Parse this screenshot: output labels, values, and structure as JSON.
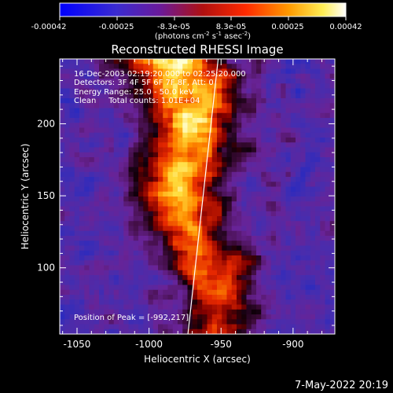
{
  "colorbar": {
    "ticks": [
      "-0.00042",
      "-0.00025",
      "-8.3e-05",
      "8.3e-05",
      "0.00025",
      "0.00042"
    ],
    "unit_label": "(photons cm",
    "unit_exp1": "-2",
    "unit_mid": " s",
    "unit_exp2": "-1",
    "unit_mid2": " asec",
    "unit_exp3": "-2",
    "unit_end": ")"
  },
  "info": {
    "time": "16-Dec-2003 02:19:20.000 to 02:25:20.000",
    "detectors": "Detectors: 3F 4F 5F 6F 7F 8F, Att: 0",
    "energy": "Energy Range: 25.0 - 50.0 keV",
    "clean": "Clean     Total counts: 1.01E+04",
    "peak": "Position of Peak = [-992,217]"
  },
  "footer": {
    "timestamp": "7-May-2022 20:19"
  },
  "colors": {
    "background": "#000000",
    "foreground": "#ffffff"
  },
  "chart_data": {
    "type": "heatmap",
    "title": "Reconstructed RHESSI Image",
    "xlabel": "Heliocentric X (arcsec)",
    "ylabel": "Heliocentric Y (arcsec)",
    "xlim": [
      -1062,
      -871
    ],
    "ylim": [
      54,
      245
    ],
    "xticks": [
      -1050,
      -1000,
      -950,
      -900
    ],
    "yticks": [
      100,
      150,
      200
    ],
    "colorbar_range": [
      -0.00042,
      0.00042
    ],
    "colormap": "blue-purple-red-orange-yellow-white",
    "peak": [
      -992,
      217
    ],
    "limb_line": [
      [
        -973,
        54
      ],
      [
        -952,
        245
      ]
    ]
  }
}
